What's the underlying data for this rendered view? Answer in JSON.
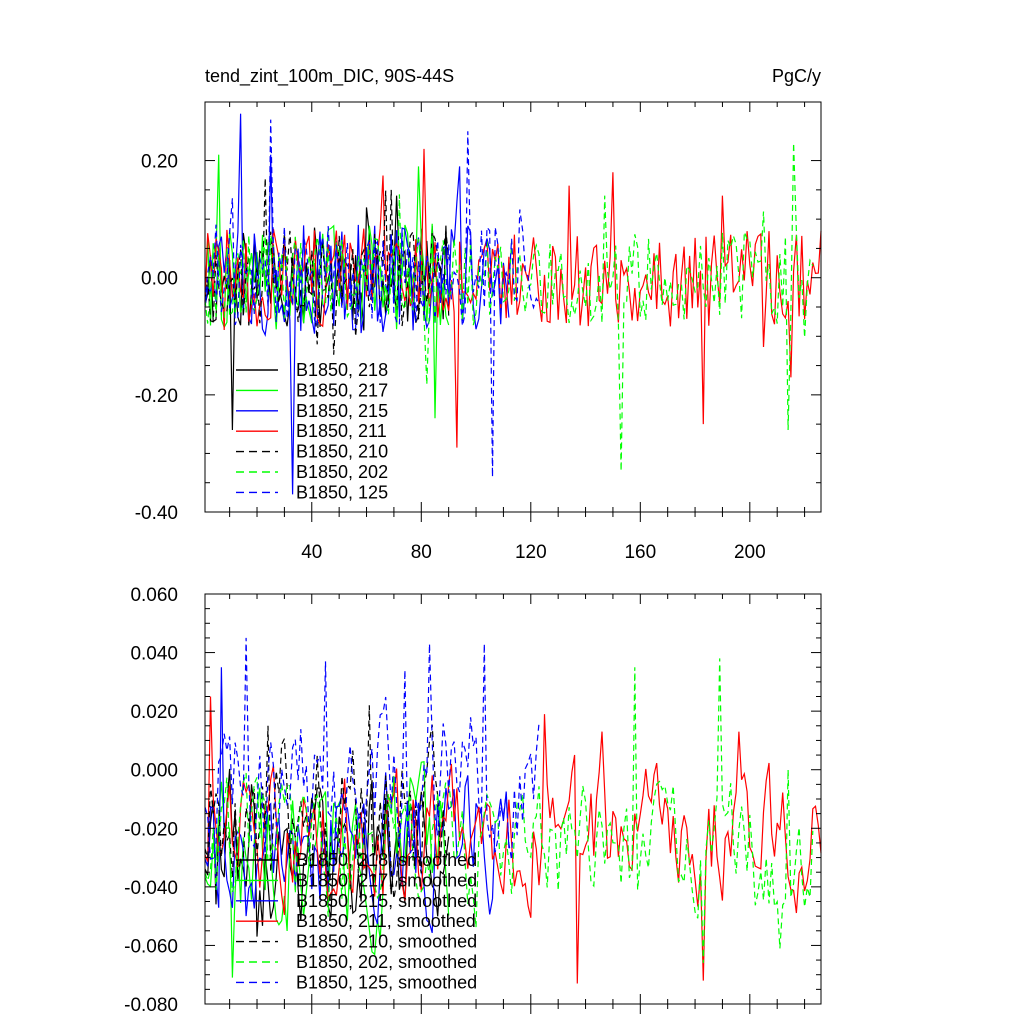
{
  "chart_data": [
    {
      "type": "line",
      "title": "tend_zint_100m_DIC, 90S-44S",
      "units": "PgC/y",
      "xlim": [
        1,
        226
      ],
      "ylim": [
        -0.4,
        0.3
      ],
      "yticks": [
        -0.4,
        -0.2,
        0.0,
        0.2
      ],
      "ytick_labels": [
        "-0.40",
        "-0.20",
        "0.00",
        "0.20"
      ],
      "xticks": [
        40,
        80,
        120,
        160,
        200
      ],
      "xtick_labels": [
        "40",
        "80",
        "120",
        "160",
        "200"
      ],
      "legend_position": "lower-left",
      "series": [
        {
          "name": "B1850, 218",
          "color": "#000000",
          "dash": "solid",
          "n": 90,
          "amp": 0.09,
          "seed": 11,
          "spikes": [
            [
              11,
              -0.26
            ],
            [
              60,
              0.12
            ],
            [
              71,
              0.14
            ]
          ]
        },
        {
          "name": "B1850, 217",
          "color": "#00ff00",
          "dash": "solid",
          "n": 90,
          "amp": 0.09,
          "seed": 22,
          "spikes": [
            [
              6,
              0.21
            ],
            [
              79,
              0.19
            ],
            [
              85,
              -0.24
            ]
          ]
        },
        {
          "name": "B1850, 215",
          "color": "#0000ff",
          "dash": "solid",
          "n": 112,
          "amp": 0.1,
          "seed": 33,
          "spikes": [
            [
              14,
              0.28
            ],
            [
              33,
              -0.37
            ],
            [
              25,
              0.21
            ],
            [
              94,
              0.19
            ]
          ]
        },
        {
          "name": "B1850, 211",
          "color": "#ff0000",
          "dash": "solid",
          "n": 226,
          "amp": 0.085,
          "seed": 44,
          "spikes": [
            [
              81,
              0.22
            ],
            [
              93,
              -0.29
            ],
            [
              150,
              0.18
            ],
            [
              183,
              -0.25
            ],
            [
              190,
              0.14
            ],
            [
              215,
              -0.17
            ]
          ]
        },
        {
          "name": "B1850, 210",
          "color": "#000000",
          "dash": "dash",
          "n": 90,
          "amp": 0.08,
          "seed": 55,
          "spikes": [
            [
              23,
              0.17
            ],
            [
              69,
              0.15
            ]
          ]
        },
        {
          "name": "B1850, 202",
          "color": "#00ff00",
          "dash": "dash",
          "n": 223,
          "amp": 0.08,
          "seed": 66,
          "spikes": [
            [
              153,
              -0.33
            ],
            [
              147,
              0.14
            ],
            [
              216,
              0.23
            ],
            [
              214,
              -0.26
            ]
          ]
        },
        {
          "name": "B1850, 125",
          "color": "#0000ff",
          "dash": "dash",
          "n": 123,
          "amp": 0.09,
          "seed": 77,
          "spikes": [
            [
              25,
              0.27
            ],
            [
              97,
              0.25
            ],
            [
              106,
              -0.34
            ]
          ]
        }
      ]
    },
    {
      "type": "line",
      "title": "",
      "units": "",
      "xlim": [
        1,
        226
      ],
      "ylim": [
        -0.08,
        0.06
      ],
      "yticks": [
        -0.08,
        -0.06,
        -0.04,
        -0.02,
        0.0,
        0.02,
        0.04,
        0.06
      ],
      "ytick_labels": [
        "-0.080",
        "-0.060",
        "-0.040",
        "-0.020",
        "0.000",
        "0.020",
        "0.040",
        "0.060"
      ],
      "xticks": [
        40,
        80,
        120,
        160,
        200
      ],
      "xtick_labels": [],
      "legend_position": "lower-left",
      "series": [
        {
          "name": "B1850, 218, smoothed",
          "color": "#000000",
          "dash": "solid",
          "n": 90,
          "base": -0.025,
          "amp": 0.02,
          "seed": 111,
          "spikes": [
            [
              5,
              -0.046
            ],
            [
              20,
              -0.057
            ]
          ]
        },
        {
          "name": "B1850, 217, smoothed",
          "color": "#00ff00",
          "dash": "solid",
          "n": 90,
          "base": -0.028,
          "amp": 0.02,
          "seed": 122,
          "spikes": [
            [
              11,
              -0.071
            ],
            [
              4,
              -0.025
            ]
          ]
        },
        {
          "name": "B1850, 215, smoothed",
          "color": "#0000ff",
          "dash": "solid",
          "n": 112,
          "base": -0.022,
          "amp": 0.02,
          "seed": 133,
          "spikes": [
            [
              7,
              0.035
            ],
            [
              16,
              -0.05
            ]
          ]
        },
        {
          "name": "B1850, 211, smoothed",
          "color": "#ff0000",
          "dash": "solid",
          "n": 226,
          "base": -0.022,
          "amp": 0.017,
          "seed": 144,
          "spikes": [
            [
              3,
              0.025
            ],
            [
              125,
              0.019
            ],
            [
              137,
              -0.073
            ],
            [
              146,
              0.013
            ],
            [
              183,
              -0.072
            ],
            [
              196,
              0.013
            ]
          ]
        },
        {
          "name": "B1850, 210, smoothed",
          "color": "#000000",
          "dash": "dash",
          "n": 90,
          "base": -0.018,
          "amp": 0.022,
          "seed": 155,
          "spikes": [
            [
              24,
              0.015
            ],
            [
              61,
              0.022
            ]
          ]
        },
        {
          "name": "B1850, 202, smoothed",
          "color": "#00ff00",
          "dash": "dash",
          "n": 223,
          "base": -0.028,
          "amp": 0.018,
          "seed": 166,
          "spikes": [
            [
              158,
              0.035
            ],
            [
              189,
              0.038
            ],
            [
              183,
              -0.066
            ],
            [
              211,
              -0.061
            ],
            [
              214,
              0.0
            ]
          ]
        },
        {
          "name": "B1850, 125, smoothed",
          "color": "#0000ff",
          "dash": "dash",
          "n": 123,
          "base": -0.005,
          "amp": 0.02,
          "seed": 177,
          "spikes": [
            [
              16,
              0.045
            ],
            [
              45,
              0.037
            ],
            [
              83,
              0.043
            ],
            [
              103,
              0.043
            ],
            [
              74,
              0.034
            ]
          ]
        }
      ]
    }
  ]
}
